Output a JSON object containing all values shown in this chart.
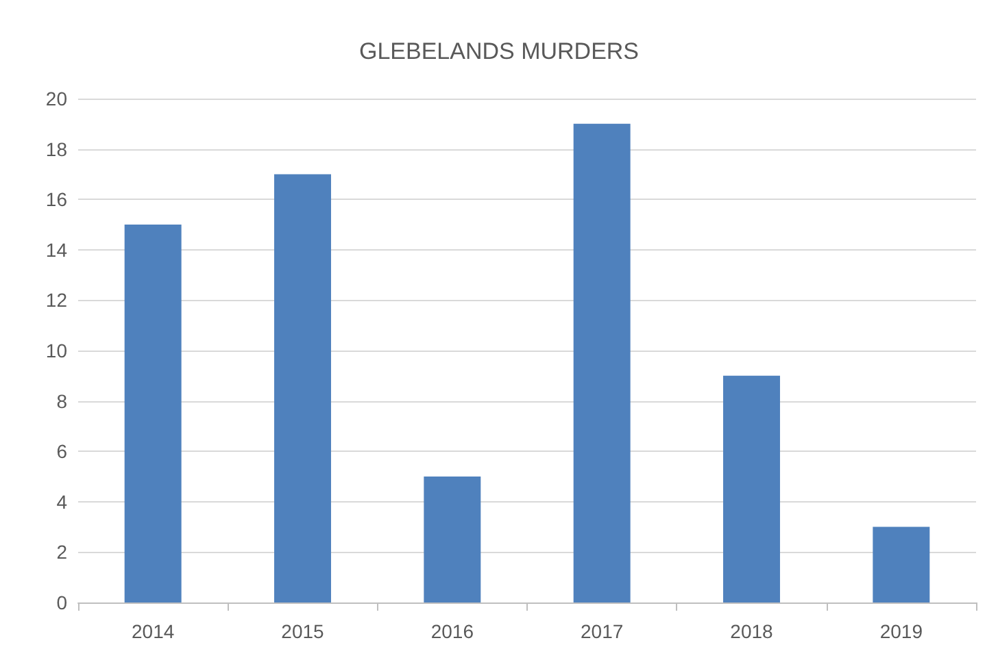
{
  "chart_data": {
    "type": "bar",
    "title": "GLEBELANDS MURDERS",
    "categories": [
      "2014",
      "2015",
      "2016",
      "2017",
      "2018",
      "2019"
    ],
    "values": [
      15,
      17,
      5,
      19,
      9,
      3
    ],
    "color": "#4f81bd",
    "ylim": [
      0,
      20
    ],
    "yticks": [
      0,
      2,
      4,
      6,
      8,
      10,
      12,
      14,
      16,
      18,
      20
    ],
    "grid": "y"
  }
}
